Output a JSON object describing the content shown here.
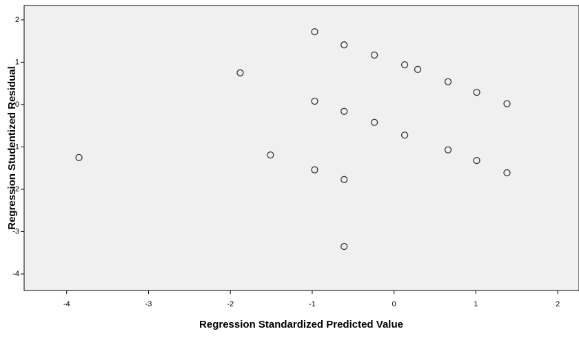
{
  "chart_data": {
    "type": "scatter",
    "x_label": "Regression Standardized Predicted Value",
    "y_label": "Regression Studentized Residual",
    "xlim": [
      -4.52,
      2.26
    ],
    "ylim": [
      -4.39,
      2.34
    ],
    "xticks": [
      -4,
      -3,
      -2,
      -1,
      0,
      1,
      2
    ],
    "yticks": [
      -4,
      -3,
      -2,
      -1,
      0,
      1,
      2
    ],
    "color": "#333333",
    "x": [
      -3.85,
      -1.88,
      -1.51,
      -0.97,
      -0.97,
      -0.97,
      -0.61,
      -0.61,
      -0.61,
      -0.61,
      -0.24,
      -0.24,
      0.13,
      0.13,
      0.29,
      0.66,
      0.66,
      1.01,
      1.01,
      1.38,
      1.38
    ],
    "y": [
      -1.25,
      0.75,
      -1.19,
      1.72,
      0.08,
      -1.54,
      1.41,
      -0.16,
      -1.77,
      -3.35,
      1.17,
      -0.42,
      0.94,
      -0.72,
      0.83,
      0.54,
      -1.07,
      0.29,
      -1.32,
      0.02,
      -1.61
    ]
  }
}
